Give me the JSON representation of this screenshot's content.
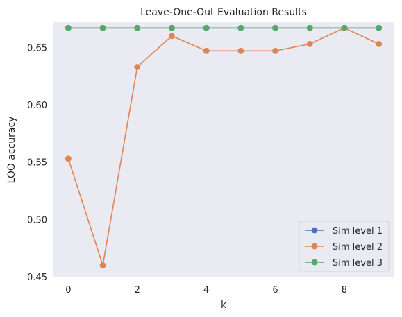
{
  "chart_data": {
    "type": "line",
    "title": "Leave-One-Out Evaluation Results",
    "xlabel": "k",
    "ylabel": "LOO accuracy",
    "xlim": [
      -0.45,
      9.45
    ],
    "ylim": [
      0.45,
      0.672
    ],
    "xticks": [
      0,
      2,
      4,
      6,
      8
    ],
    "yticks": [
      0.45,
      0.5,
      0.55,
      0.6,
      0.65
    ],
    "ytick_labels": [
      "0.45",
      "0.50",
      "0.55",
      "0.60",
      "0.65"
    ],
    "grid": false,
    "background": "#eaeaf2",
    "legend_position": "lower-right",
    "x": [
      0,
      1,
      2,
      3,
      4,
      5,
      6,
      7,
      8,
      9
    ],
    "series": [
      {
        "name": "Sim level 1",
        "color": "#4c72b0",
        "values": [
          0.667,
          0.667,
          0.667,
          0.667,
          0.667,
          0.667,
          0.667,
          0.667,
          0.667,
          0.667
        ]
      },
      {
        "name": "Sim level 2",
        "color": "#dd8452",
        "values": [
          0.553,
          0.46,
          0.633,
          0.66,
          0.647,
          0.647,
          0.647,
          0.653,
          0.667,
          0.653
        ]
      },
      {
        "name": "Sim level 3",
        "color": "#55a868",
        "values": [
          0.667,
          0.667,
          0.667,
          0.667,
          0.667,
          0.667,
          0.667,
          0.667,
          0.667,
          0.667
        ]
      }
    ]
  }
}
